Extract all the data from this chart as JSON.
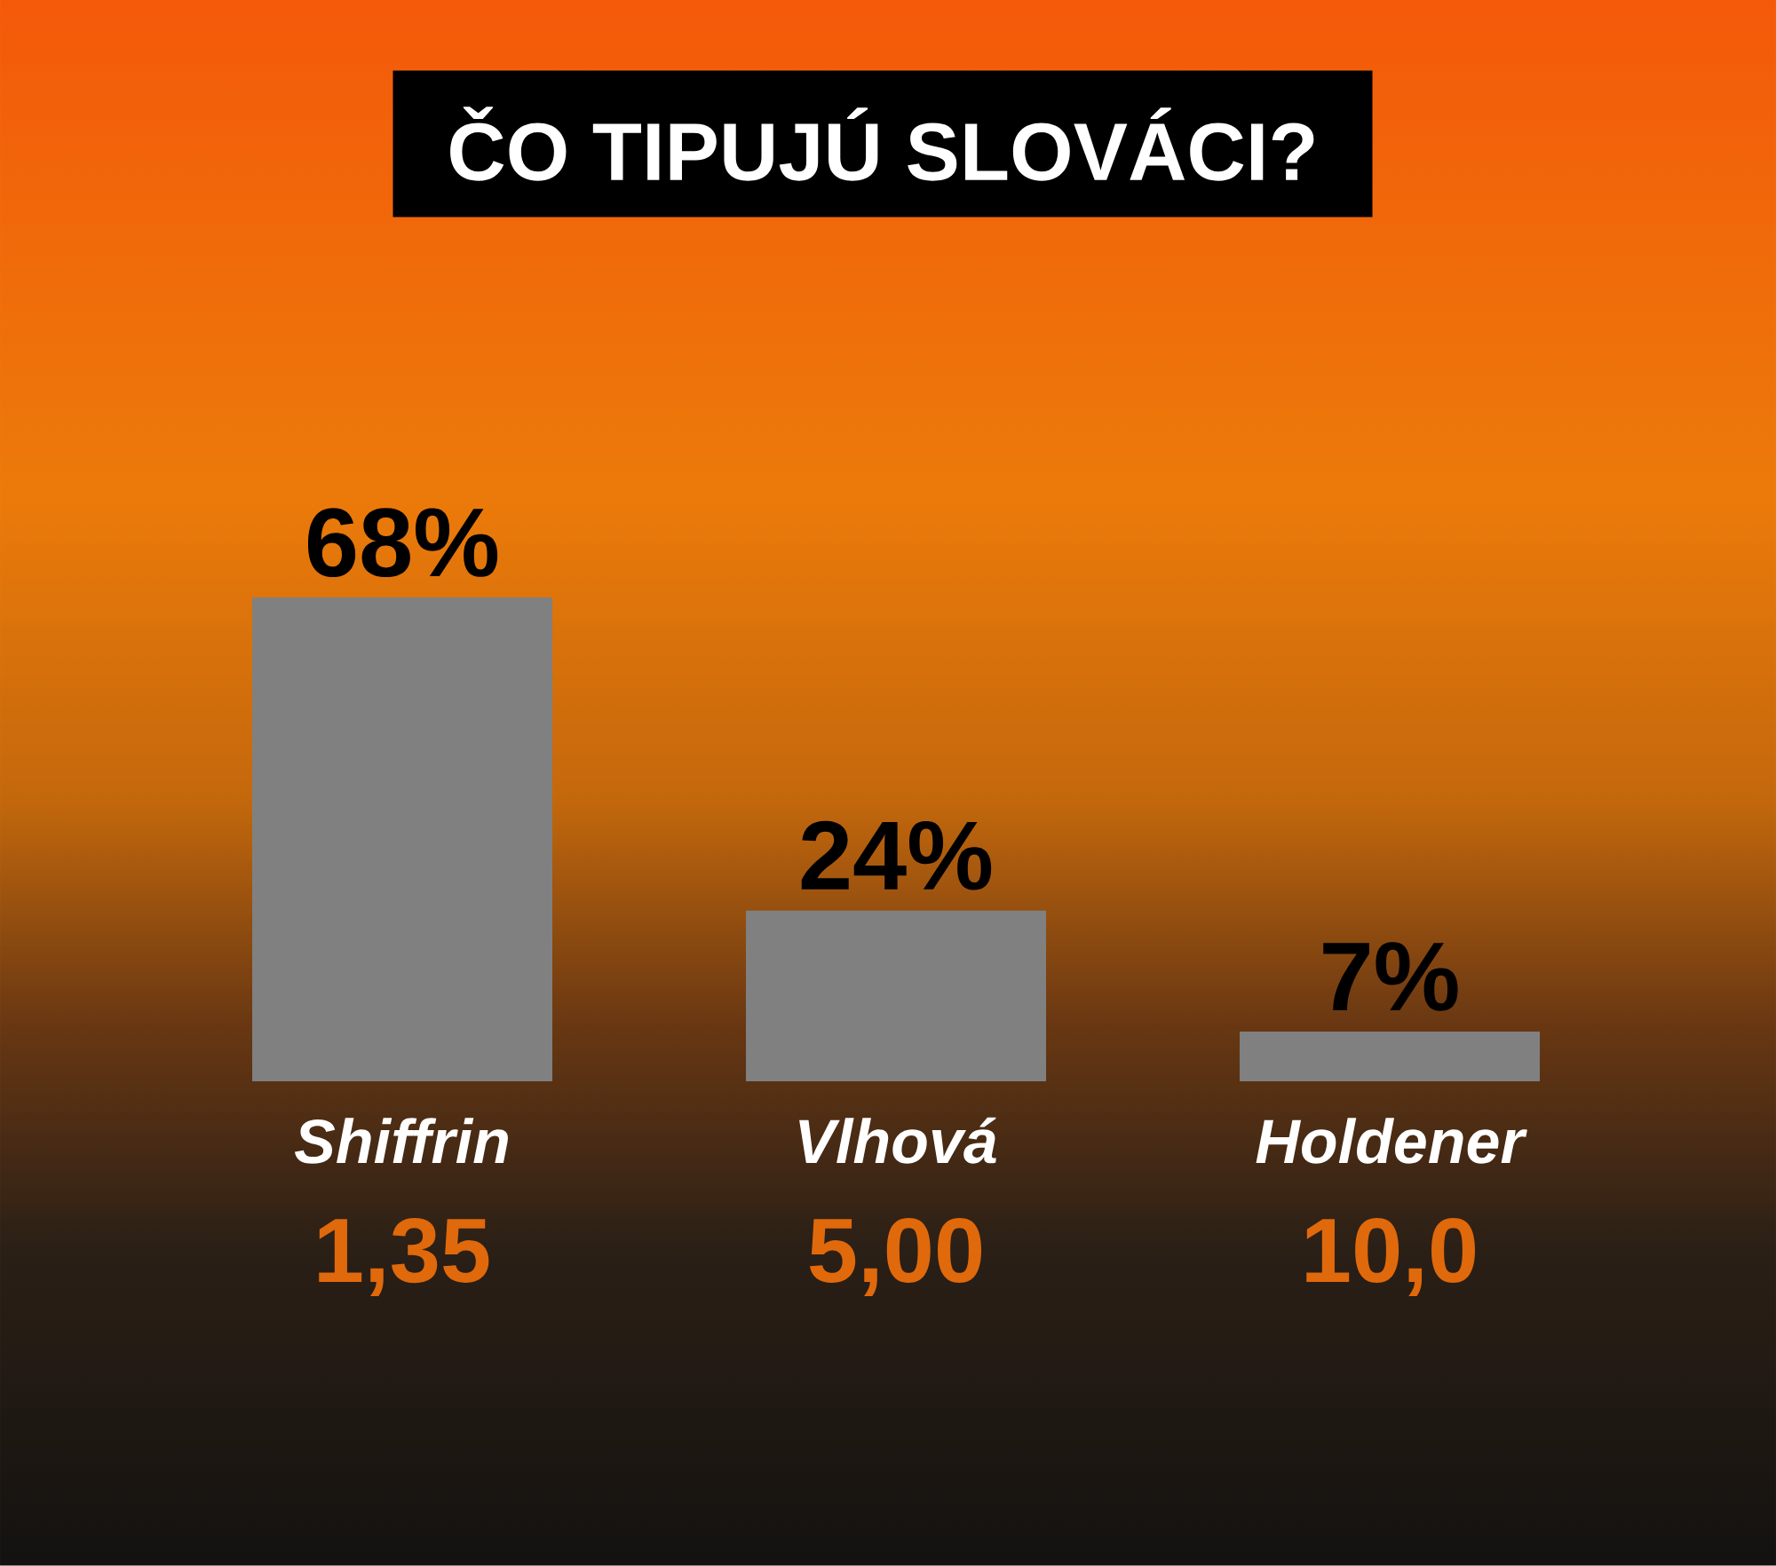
{
  "chart_data": {
    "type": "bar",
    "title": "ČO TIPUJÚ SLOVÁCI?",
    "categories": [
      "Shiffrin",
      "Vlhová",
      "Holdener"
    ],
    "values": [
      68,
      24,
      7
    ],
    "value_labels": [
      "68%",
      "24%",
      "7%"
    ],
    "color": "#808080",
    "annotations": [
      "1,35",
      "5,00",
      "10,0"
    ]
  }
}
